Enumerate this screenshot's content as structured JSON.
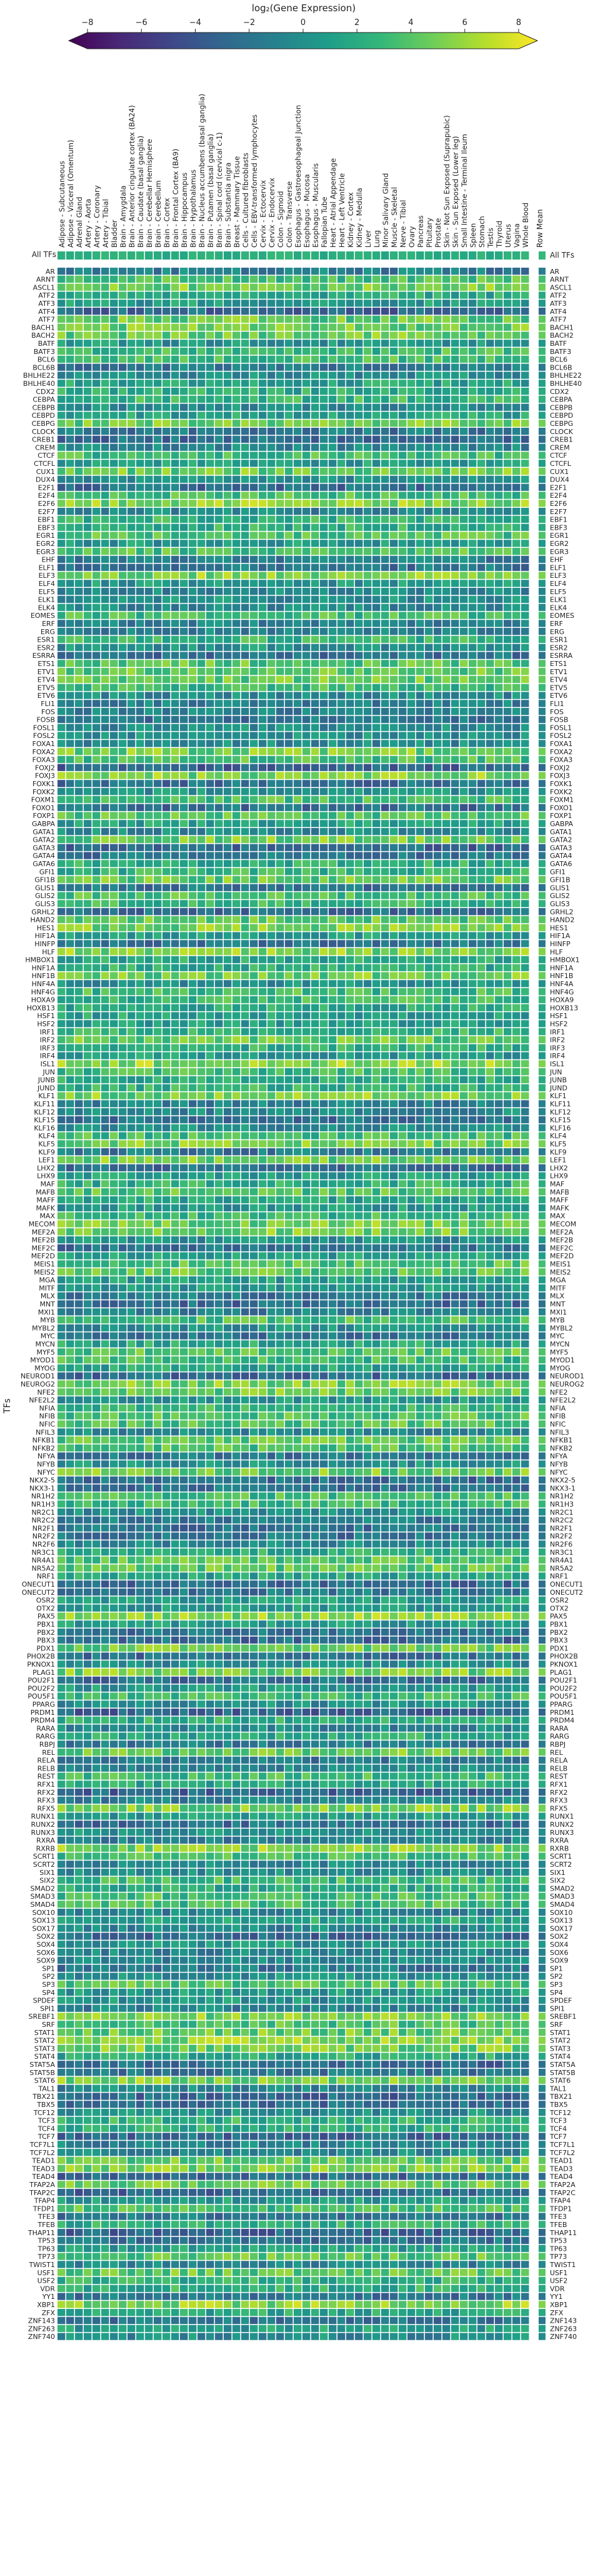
{
  "chart_data": {
    "type": "heatmap",
    "title": "",
    "xlabel": "",
    "ylabel": "TFs",
    "colorbar": {
      "label": "log₂(Gene Expression)",
      "colormap": "viridis",
      "extend": "both",
      "range": [
        -8,
        8
      ],
      "ticks": [
        "−8",
        "−6",
        "−4",
        "−2",
        "0",
        "2",
        "4",
        "6",
        "8"
      ]
    },
    "summary_row_label": "All TFs",
    "mean_column_label": "Row Mean",
    "columns": [
      "Adipose - Subcutaneous",
      "Adipose - Visceral (Omentum)",
      "Adrenal Gland",
      "Artery - Aorta",
      "Artery - Coronary",
      "Artery - Tibial",
      "Bladder",
      "Brain - Amygdala",
      "Brain - Anterior cingulate cortex (BA24)",
      "Brain - Caudate (basal ganglia)",
      "Brain - Cerebellar Hemisphere",
      "Brain - Cerebellum",
      "Brain - Cortex",
      "Brain - Frontal Cortex (BA9)",
      "Brain - Hippocampus",
      "Brain - Hypothalamus",
      "Brain - Nucleus accumbens (basal ganglia)",
      "Brain - Putamen (basal ganglia)",
      "Brain - Spinal cord (cervical c-1)",
      "Brain - Substantia nigra",
      "Breast - Mammary Tissue",
      "Cells - Cultured fibroblasts",
      "Cells - EBV-transformed lymphocytes",
      "Cervix - Ectocervix",
      "Cervix - Endocervix",
      "Colon - Sigmoid",
      "Colon - Transverse",
      "Esophagus - Gastroesophageal Junction",
      "Esophagus - Mucosa",
      "Esophagus - Muscularis",
      "Fallopian Tube",
      "Heart - Atrial Appendage",
      "Heart - Left Ventricle",
      "Kidney - Cortex",
      "Kidney - Medulla",
      "Liver",
      "Lung",
      "Minor Salivary Gland",
      "Muscle - Skeletal",
      "Nerve - Tibial",
      "Ovary",
      "Pancreas",
      "Pituitary",
      "Prostate",
      "Skin - Not Sun Exposed (Suprapubic)",
      "Skin - Sun Exposed (Lower leg)",
      "Small Intestine - Terminal Ileum",
      "Spleen",
      "Stomach",
      "Testis",
      "Thyroid",
      "Uterus",
      "Vagina",
      "Whole Blood"
    ],
    "rows": [
      "AR",
      "ARNT",
      "ASCL1",
      "ATF2",
      "ATF3",
      "ATF4",
      "ATF7",
      "BACH1",
      "BACH2",
      "BATF",
      "BATF3",
      "BCL6",
      "BCL6B",
      "BHLHE22",
      "BHLHE40",
      "CDX2",
      "CEBPA",
      "CEBPB",
      "CEBPD",
      "CEBPG",
      "CLOCK",
      "CREB1",
      "CREM",
      "CTCF",
      "CTCFL",
      "CUX1",
      "DUX4",
      "E2F1",
      "E2F4",
      "E2F6",
      "E2F7",
      "EBF1",
      "EBF3",
      "EGR1",
      "EGR2",
      "EGR3",
      "EHF",
      "ELF1",
      "ELF3",
      "ELF4",
      "ELF5",
      "ELK1",
      "ELK4",
      "EOMES",
      "ERF",
      "ERG",
      "ESR1",
      "ESR2",
      "ESRRA",
      "ETS1",
      "ETV1",
      "ETV4",
      "ETV5",
      "ETV6",
      "FLI1",
      "FOS",
      "FOSB",
      "FOSL1",
      "FOSL2",
      "FOXA1",
      "FOXA2",
      "FOXA3",
      "FOXJ2",
      "FOXJ3",
      "FOXK1",
      "FOXK2",
      "FOXM1",
      "FOXO1",
      "FOXP1",
      "GABPA",
      "GATA1",
      "GATA2",
      "GATA3",
      "GATA4",
      "GATA6",
      "GFI1",
      "GFI1B",
      "GLIS1",
      "GLIS2",
      "GLIS3",
      "GRHL2",
      "HAND2",
      "HES1",
      "HIF1A",
      "HINFP",
      "HLF",
      "HMBOX1",
      "HNF1A",
      "HNF1B",
      "HNF4A",
      "HNF4G",
      "HOXA9",
      "HOXB13",
      "HSF1",
      "HSF2",
      "IRF1",
      "IRF2",
      "IRF3",
      "IRF4",
      "ISL1",
      "JUN",
      "JUNB",
      "JUND",
      "KLF1",
      "KLF11",
      "KLF12",
      "KLF15",
      "KLF16",
      "KLF4",
      "KLF5",
      "KLF9",
      "LEF1",
      "LHX2",
      "LHX9",
      "MAF",
      "MAFB",
      "MAFF",
      "MAFK",
      "MAX",
      "MECOM",
      "MEF2A",
      "MEF2B",
      "MEF2C",
      "MEF2D",
      "MEIS1",
      "MEIS2",
      "MGA",
      "MITF",
      "MLX",
      "MNT",
      "MXI1",
      "MYB",
      "MYBL2",
      "MYC",
      "MYCN",
      "MYF5",
      "MYOD1",
      "MYOG",
      "NEUROD1",
      "NEUROG2",
      "NFE2",
      "NFE2L2",
      "NFIA",
      "NFIB",
      "NFIC",
      "NFIL3",
      "NFKB1",
      "NFKB2",
      "NFYA",
      "NFYB",
      "NFYC",
      "NKX2-5",
      "NKX3-1",
      "NR1H2",
      "NR1H3",
      "NR2C1",
      "NR2C2",
      "NR2F1",
      "NR2F2",
      "NR2F6",
      "NR3C1",
      "NR4A1",
      "NR5A2",
      "NRF1",
      "ONECUT1",
      "ONECUT2",
      "OSR2",
      "OTX2",
      "PAX5",
      "PBX1",
      "PBX2",
      "PBX3",
      "PDX1",
      "PHOX2B",
      "PKNOX1",
      "PLAG1",
      "POU2F1",
      "POU2F2",
      "POU5F1",
      "PPARG",
      "PRDM1",
      "PRDM4",
      "RARA",
      "RARG",
      "RBPJ",
      "REL",
      "RELA",
      "RELB",
      "REST",
      "RFX1",
      "RFX2",
      "RFX3",
      "RFX5",
      "RUNX1",
      "RUNX2",
      "RUNX3",
      "RXRA",
      "RXRB",
      "SCRT1",
      "SCRT2",
      "SIX1",
      "SIX2",
      "SMAD2",
      "SMAD3",
      "SMAD4",
      "SOX10",
      "SOX13",
      "SOX17",
      "SOX2",
      "SOX4",
      "SOX6",
      "SOX9",
      "SP1",
      "SP2",
      "SP3",
      "SP4",
      "SPDEF",
      "SPI1",
      "SREBF1",
      "SRF",
      "STAT1",
      "STAT2",
      "STAT3",
      "STAT4",
      "STAT5A",
      "STAT5B",
      "STAT6",
      "TAL1",
      "TBX21",
      "TBX5",
      "TCF12",
      "TCF3",
      "TCF4",
      "TCF7",
      "TCF7L1",
      "TCF7L2",
      "TEAD1",
      "TEAD3",
      "TEAD4",
      "TFAP2A",
      "TFAP2C",
      "TFAP4",
      "TFDP1",
      "TFE3",
      "TFEB",
      "THAP11",
      "TP53",
      "TP63",
      "TP73",
      "TWIST1",
      "USF1",
      "USF2",
      "VDR",
      "YY1",
      "XBP1",
      "ZFX",
      "ZNF143",
      "ZNF263",
      "ZNF740"
    ],
    "values_note": "",
    "generator": {
      "seed": 20240605,
      "row_bias_scale": 4,
      "cell_noise_scale": 2.0
    }
  },
  "palette": {
    "viridis": [
      "#440154",
      "#482878",
      "#3e4989",
      "#31688e",
      "#26828e",
      "#1f9e89",
      "#35b779",
      "#6ece58",
      "#b5de2b",
      "#fde725"
    ],
    "missing_cell": "#ffffff",
    "grid": "#ffffff"
  }
}
